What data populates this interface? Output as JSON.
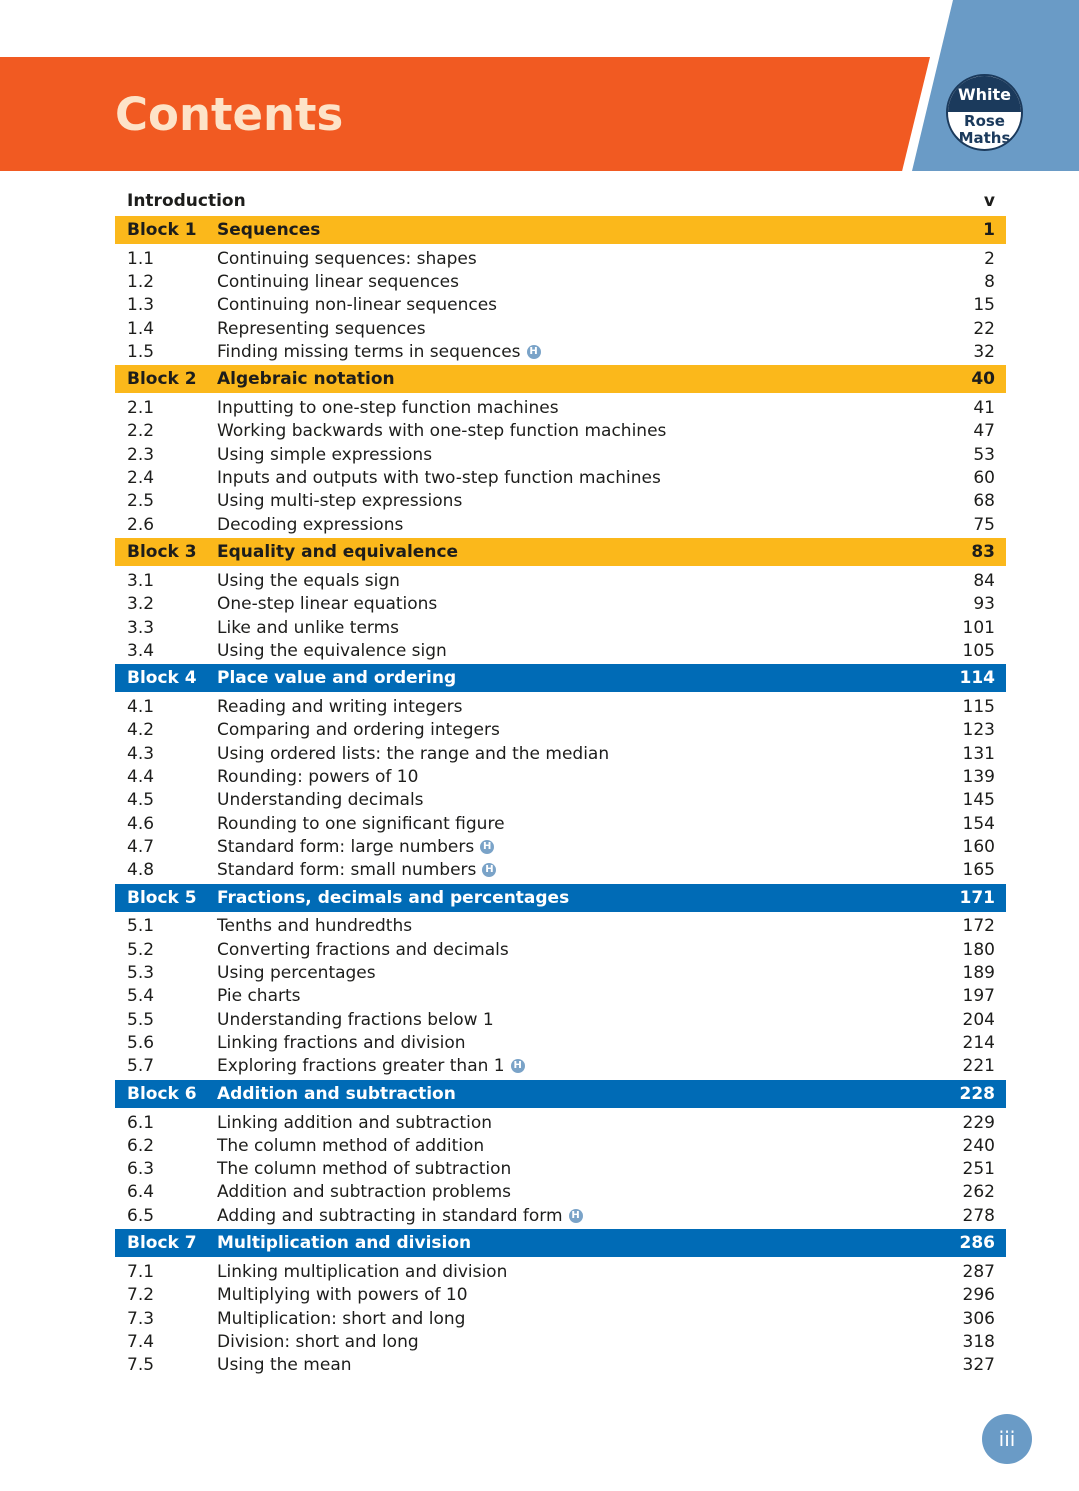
{
  "header": {
    "title": "Contents",
    "logo": {
      "line1": "White",
      "line2": "Rose",
      "line3": "Maths"
    }
  },
  "intro": {
    "label": "Introduction",
    "page": "v"
  },
  "blocks": [
    {
      "label": "Block 1",
      "title": "Sequences",
      "page": "1",
      "color": "#fbb81b",
      "items": [
        {
          "num": "1.1",
          "title": "Continuing sequences: shapes",
          "page": "2"
        },
        {
          "num": "1.2",
          "title": "Continuing linear sequences",
          "page": "8"
        },
        {
          "num": "1.3",
          "title": "Continuing non-linear sequences",
          "page": "15"
        },
        {
          "num": "1.4",
          "title": "Representing sequences",
          "page": "22"
        },
        {
          "num": "1.5",
          "title": "Finding missing terms in sequences",
          "page": "32",
          "higher": true
        }
      ]
    },
    {
      "label": "Block 2",
      "title": "Algebraic notation",
      "page": "40",
      "color": "#fbb81b",
      "items": [
        {
          "num": "2.1",
          "title": "Inputting to one-step function machines",
          "page": "41"
        },
        {
          "num": "2.2",
          "title": "Working backwards with one-step function machines",
          "page": "47"
        },
        {
          "num": "2.3",
          "title": "Using simple expressions",
          "page": "53"
        },
        {
          "num": "2.4",
          "title": "Inputs and outputs with two-step function machines",
          "page": "60"
        },
        {
          "num": "2.5",
          "title": "Using multi-step expressions",
          "page": "68"
        },
        {
          "num": "2.6",
          "title": "Decoding expressions",
          "page": "75"
        }
      ]
    },
    {
      "label": "Block 3",
      "title": "Equality and equivalence",
      "page": "83",
      "color": "#fbb81b",
      "items": [
        {
          "num": "3.1",
          "title": "Using the equals sign",
          "page": "84"
        },
        {
          "num": "3.2",
          "title": "One-step linear equations",
          "page": "93"
        },
        {
          "num": "3.3",
          "title": "Like and unlike terms",
          "page": "101"
        },
        {
          "num": "3.4",
          "title": "Using the equivalence sign",
          "page": "105"
        }
      ]
    },
    {
      "label": "Block 4",
      "title": "Place value and ordering",
      "page": "114",
      "color": "#006bb6",
      "items": [
        {
          "num": "4.1",
          "title": "Reading and writing integers",
          "page": "115"
        },
        {
          "num": "4.2",
          "title": "Comparing and ordering integers",
          "page": "123"
        },
        {
          "num": "4.3",
          "title": "Using ordered lists: the range and the median",
          "page": "131"
        },
        {
          "num": "4.4",
          "title": "Rounding: powers of 10",
          "page": "139"
        },
        {
          "num": "4.5",
          "title": "Understanding decimals",
          "page": "145"
        },
        {
          "num": "4.6",
          "title": "Rounding to one significant figure",
          "page": "154"
        },
        {
          "num": "4.7",
          "title": "Standard form: large numbers",
          "page": "160",
          "higher": true
        },
        {
          "num": "4.8",
          "title": "Standard form: small numbers",
          "page": "165",
          "higher": true
        }
      ]
    },
    {
      "label": "Block 5",
      "title": "Fractions, decimals and percentages",
      "page": "171",
      "color": "#006bb6",
      "items": [
        {
          "num": "5.1",
          "title": "Tenths and hundredths",
          "page": "172"
        },
        {
          "num": "5.2",
          "title": "Converting fractions and decimals",
          "page": "180"
        },
        {
          "num": "5.3",
          "title": "Using percentages",
          "page": "189"
        },
        {
          "num": "5.4",
          "title": "Pie charts",
          "page": "197"
        },
        {
          "num": "5.5",
          "title": "Understanding fractions below 1",
          "page": "204"
        },
        {
          "num": "5.6",
          "title": "Linking fractions and division",
          "page": "214"
        },
        {
          "num": "5.7",
          "title": "Exploring fractions greater than 1",
          "page": "221",
          "higher": true
        }
      ]
    },
    {
      "label": "Block 6",
      "title": "Addition and subtraction",
      "page": "228",
      "color": "#006bb6",
      "items": [
        {
          "num": "6.1",
          "title": "Linking addition and subtraction",
          "page": "229"
        },
        {
          "num": "6.2",
          "title": "The column method of addition",
          "page": "240"
        },
        {
          "num": "6.3",
          "title": "The column method of subtraction",
          "page": "251"
        },
        {
          "num": "6.4",
          "title": "Addition and subtraction problems",
          "page": "262"
        },
        {
          "num": "6.5",
          "title": "Adding and subtracting in standard form",
          "page": "278",
          "higher": true
        }
      ]
    },
    {
      "label": "Block 7",
      "title": "Multiplication and division",
      "page": "286",
      "color": "#006bb6",
      "items": [
        {
          "num": "7.1",
          "title": "Linking multiplication and division",
          "page": "287"
        },
        {
          "num": "7.2",
          "title": "Multiplying with powers of 10",
          "page": "296"
        },
        {
          "num": "7.3",
          "title": "Multiplication: short and long",
          "page": "306"
        },
        {
          "num": "7.4",
          "title": "Division: short and long",
          "page": "318"
        },
        {
          "num": "7.5",
          "title": "Using the mean",
          "page": "327"
        }
      ]
    }
  ],
  "higher_icon": {
    "name": "higher-tier-icon",
    "glyph": "H"
  },
  "footer": {
    "page_number": "iii"
  }
}
